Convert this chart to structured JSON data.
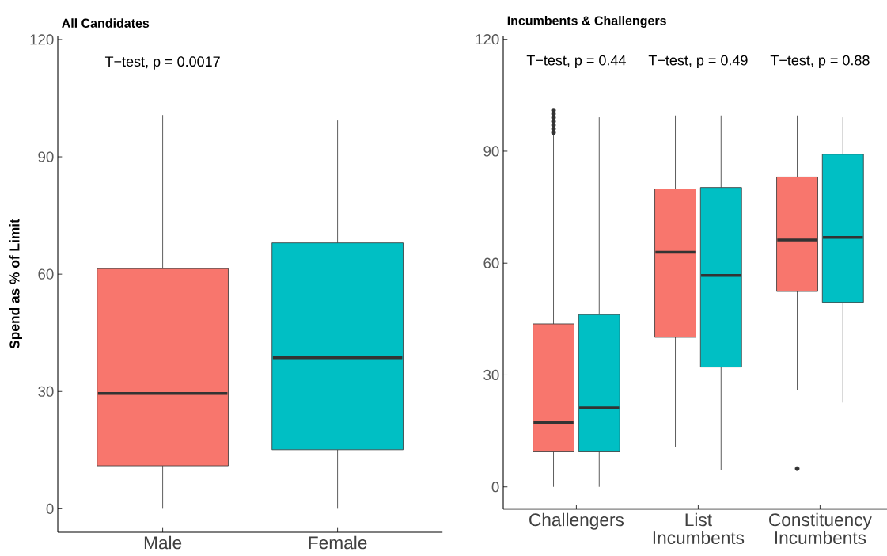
{
  "chart_data": [
    {
      "type": "box",
      "title": "All Candidates",
      "ylabel": "Spend as % of Limit",
      "categories": [
        "Male",
        "Female"
      ],
      "colors": [
        "#f8766d",
        "#00bfc4"
      ],
      "boxes": [
        {
          "low": 0,
          "q1": 11.0,
          "median": 29.5,
          "q3": 61.4,
          "high": 100.7
        },
        {
          "low": 0,
          "q1": 15.1,
          "median": 38.6,
          "q3": 68.0,
          "high": 99.3
        }
      ],
      "ylim": [
        -6,
        121
      ],
      "yticks": [
        0,
        30,
        60,
        90,
        120
      ],
      "annotations": [
        "T−test, p = 0.0017"
      ]
    },
    {
      "type": "box",
      "title": "Incumbents & Challengers",
      "categories": [
        "Challengers",
        "List Incumbents",
        "Constituency Incumbents"
      ],
      "series": [
        {
          "color": "#f8766d",
          "boxes": [
            {
              "low": 0,
              "q1": 9.4,
              "median": 17.3,
              "q3": 43.7,
              "high": 94.7,
              "outliers": [
                95,
                96,
                97,
                98,
                99,
                100,
                101
              ]
            },
            {
              "low": 10.6,
              "q1": 40.1,
              "median": 62.9,
              "q3": 79.9,
              "high": 99.6
            },
            {
              "low": 25.9,
              "q1": 52.4,
              "median": 66.2,
              "q3": 83.1,
              "high": 99.6,
              "outliers": [
                4.9
              ]
            }
          ]
        },
        {
          "color": "#00bfc4",
          "boxes": [
            {
              "low": 0,
              "q1": 9.4,
              "median": 21.2,
              "q3": 46.2,
              "high": 99.1
            },
            {
              "low": 4.6,
              "q1": 32.1,
              "median": 56.7,
              "q3": 80.3,
              "high": 99.6
            },
            {
              "low": 22.6,
              "q1": 49.5,
              "median": 66.9,
              "q3": 89.2,
              "high": 99.1
            }
          ]
        }
      ],
      "ylim": [
        -6,
        121
      ],
      "yticks": [
        0,
        30,
        60,
        90,
        120
      ],
      "annotations": [
        "T−test, p = 0.44",
        "T−test, p = 0.49",
        "T−test, p = 0.88"
      ]
    }
  ]
}
